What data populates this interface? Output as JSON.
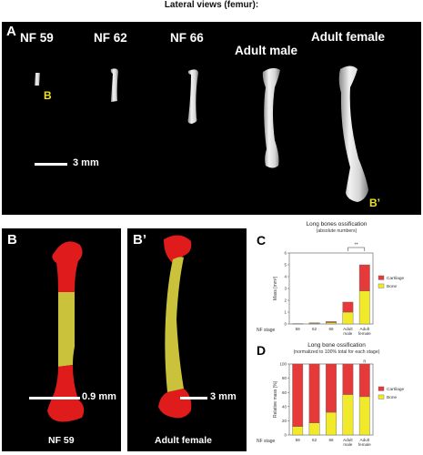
{
  "figure": {
    "title": "Lateral views (femur):"
  },
  "panel_a": {
    "letter": "A",
    "stages": [
      "NF 59",
      "NF 62",
      "NF 66",
      "Adult male",
      "Adult female"
    ],
    "marker_b": "B",
    "marker_bp": "B’",
    "scale_label": "3 mm"
  },
  "panel_b": {
    "letter": "B",
    "scale_label": "0.9 mm",
    "caption": "NF 59"
  },
  "panel_bp": {
    "letter": "B’",
    "scale_label": "3 mm",
    "caption": "Adult female"
  },
  "panel_c": {
    "letter": "C"
  },
  "panel_d": {
    "letter": "D"
  },
  "colors": {
    "cartilage": "#e63a3a",
    "bone": "#f1ea2a",
    "bone_3d": "#c9c23a",
    "cartilage_3d": "#e01b1b"
  },
  "chart_data": [
    {
      "type": "bar",
      "stacked": true,
      "title": "Long bones ossification",
      "subtitle": "(absolute numbers)",
      "xlabel": "NF stage",
      "ylabel": "Mass [mm³]",
      "categories": [
        "59",
        "62",
        "66",
        "Adult male",
        "Adult female"
      ],
      "ylim": [
        0,
        6
      ],
      "yticks": [
        0,
        1,
        2,
        3,
        4,
        5,
        6
      ],
      "series": [
        {
          "name": "Bone",
          "values": [
            0.01,
            0.05,
            0.12,
            1.0,
            2.8
          ]
        },
        {
          "name": "Cartilage",
          "values": [
            0.02,
            0.05,
            0.08,
            0.85,
            2.2
          ]
        }
      ],
      "legend": [
        "Cartilage",
        "Bone"
      ],
      "legend_position": "right",
      "annotation": "**"
    },
    {
      "type": "bar",
      "stacked": true,
      "title": "Long bone ossification",
      "subtitle": "(normalized to 100% total for each stage)",
      "xlabel": "NF stage",
      "ylabel": "Relative mass [%]",
      "categories": [
        "59",
        "62",
        "66",
        "Adult male",
        "Adult female"
      ],
      "ylim": [
        0,
        100
      ],
      "yticks": [
        0,
        20,
        40,
        60,
        80,
        100
      ],
      "series": [
        {
          "name": "Bone",
          "values": [
            12,
            17,
            32,
            57,
            54
          ]
        },
        {
          "name": "Cartilage",
          "values": [
            88,
            83,
            68,
            43,
            46
          ]
        }
      ],
      "legend": [
        "Cartilage",
        "Bone"
      ],
      "legend_position": "right",
      "annotation": "n"
    }
  ]
}
